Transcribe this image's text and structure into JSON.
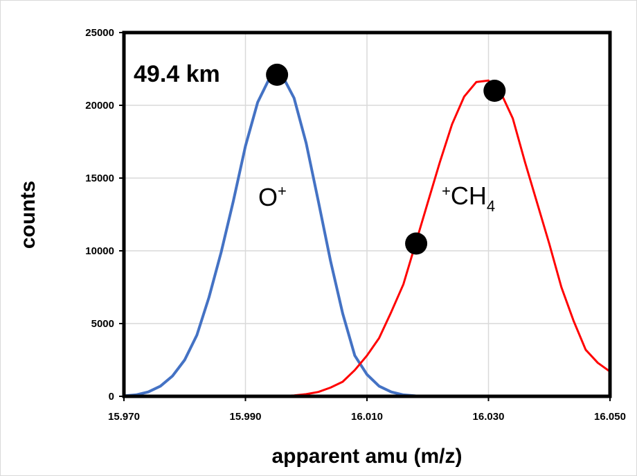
{
  "chart_data": {
    "type": "line",
    "xlabel": "apparent amu (m/z)",
    "ylabel": "counts",
    "xlim": [
      15.97,
      16.05
    ],
    "ylim": [
      0,
      25000
    ],
    "x_ticks": [
      15.97,
      15.99,
      16.01,
      16.03,
      16.05
    ],
    "x_tick_labels": [
      "15.970",
      "15.990",
      "16.010",
      "16.030",
      "16.050"
    ],
    "y_ticks": [
      0,
      5000,
      10000,
      15000,
      20000,
      25000
    ],
    "y_tick_labels": [
      "0",
      "5000",
      "10000",
      "15000",
      "20000",
      "25000"
    ],
    "grid": true,
    "annotations": {
      "altitude": "49.4 km",
      "oxygen_ion": {
        "base": "O",
        "sup": "+"
      },
      "methane_ion": {
        "sup": "+",
        "base": "CH",
        "sub": "4"
      }
    },
    "series": [
      {
        "color": "#4472C4",
        "x": [
          15.97,
          15.972,
          15.974,
          15.976,
          15.978,
          15.98,
          15.982,
          15.984,
          15.986,
          15.988,
          15.99,
          15.992,
          15.994,
          15.996,
          15.998,
          16.0,
          16.002,
          16.004,
          16.006,
          16.008,
          16.01,
          16.012,
          16.014,
          16.016,
          16.018,
          16.02,
          16.03,
          16.04,
          16.05
        ],
        "y": [
          30,
          100,
          300,
          700,
          1400,
          2500,
          4200,
          6800,
          9900,
          13400,
          17200,
          20200,
          21900,
          22100,
          20500,
          17400,
          13400,
          9300,
          5700,
          2800,
          1500,
          700,
          300,
          100,
          30,
          10,
          0,
          0,
          0
        ]
      },
      {
        "color": "#FF0000",
        "x": [
          15.97,
          15.98,
          15.99,
          15.996,
          15.998,
          16.0,
          16.002,
          16.004,
          16.006,
          16.008,
          16.01,
          16.012,
          16.014,
          16.016,
          16.018,
          16.02,
          16.022,
          16.024,
          16.026,
          16.028,
          16.03,
          16.032,
          16.034,
          16.036,
          16.038,
          16.04,
          16.042,
          16.044,
          16.046,
          16.048,
          16.05
        ],
        "y": [
          0,
          0,
          0,
          20,
          60,
          150,
          300,
          600,
          1000,
          1800,
          2800,
          4000,
          5800,
          7700,
          10500,
          13300,
          16100,
          18700,
          20600,
          21600,
          21700,
          20900,
          19100,
          16100,
          13300,
          10500,
          7500,
          5200,
          3200,
          2300,
          1700
        ]
      }
    ],
    "markers": {
      "color": "#000000",
      "points": [
        {
          "x": 15.9952,
          "y": 22100
        },
        {
          "x": 16.0181,
          "y": 10500
        },
        {
          "x": 16.031,
          "y": 21000
        }
      ]
    }
  }
}
